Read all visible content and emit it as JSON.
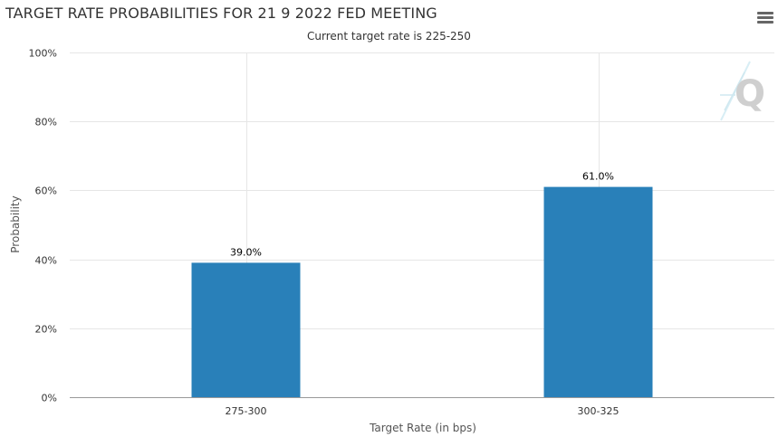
{
  "chart_data": {
    "type": "bar",
    "title": "TARGET RATE PROBABILITIES FOR 21 9 2022 FED MEETING",
    "subtitle": "Current target rate is 225-250",
    "xlabel": "Target Rate (in bps)",
    "ylabel": "Probability",
    "categories": [
      "275-300",
      "300-325"
    ],
    "values": [
      39.0,
      61.0
    ],
    "data_labels": [
      "39.0%",
      "61.0%"
    ],
    "ylim": [
      0,
      100
    ],
    "yticks": [
      0,
      20,
      40,
      60,
      80,
      100
    ],
    "ytick_labels": [
      "0%",
      "20%",
      "40%",
      "60%",
      "80%",
      "100%"
    ],
    "grid": true,
    "bar_color": "#2980b9"
  },
  "watermark_icon": "q-logo-icon",
  "menu_icon": "hamburger-menu-icon"
}
